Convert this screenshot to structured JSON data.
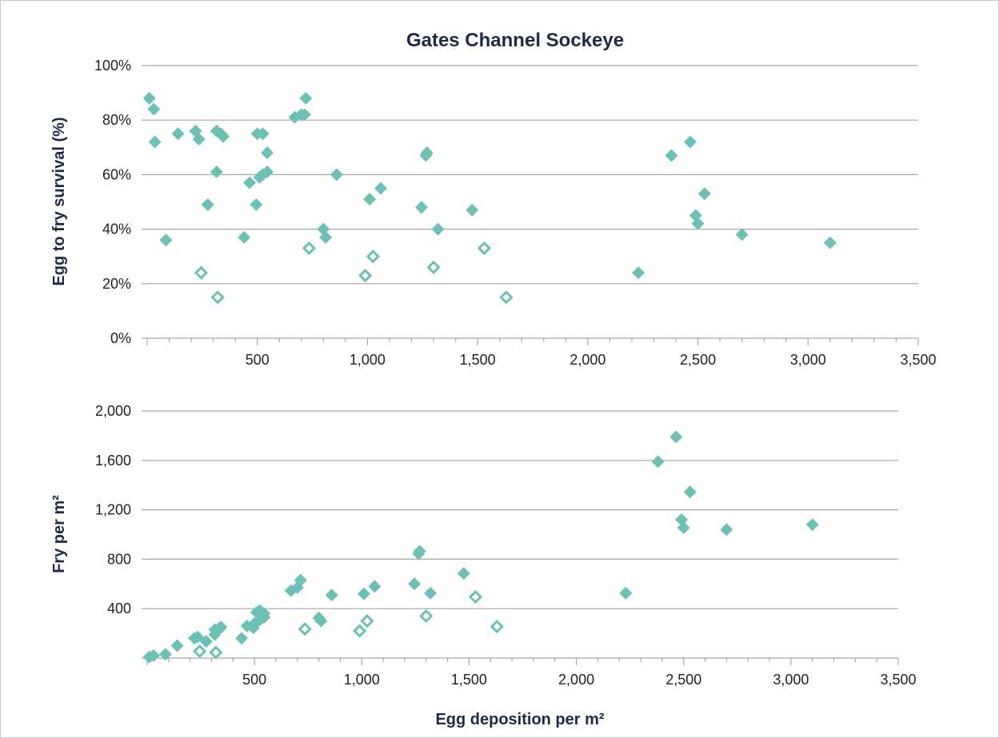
{
  "colors": {
    "marker": "#6cc0b4",
    "grid": "#a6a6a6",
    "text": "#1d2a4a"
  },
  "chart_data": [
    {
      "type": "scatter",
      "title": "Gates Channel Sockeye",
      "xlabel": "",
      "ylabel": "Egg to fry survival (%)",
      "xlim": [
        0,
        3500
      ],
      "ylim": [
        0,
        100
      ],
      "x_ticks": [
        "500",
        "1,000",
        "1,500",
        "2,000",
        "2,500",
        "3,000",
        "3,500"
      ],
      "y_ticks": [
        "0%",
        "20%",
        "40%",
        "60%",
        "80%",
        "100%"
      ],
      "grid": "horizontal",
      "legend": "none",
      "series": [
        {
          "marker": "filled-diamond",
          "points": [
            [
              10,
              88
            ],
            [
              30,
              84
            ],
            [
              35,
              72
            ],
            [
              85,
              36
            ],
            [
              140,
              75
            ],
            [
              220,
              76
            ],
            [
              235,
              73
            ],
            [
              275,
              49
            ],
            [
              315,
              76
            ],
            [
              315,
              61
            ],
            [
              335,
              75
            ],
            [
              345,
              74
            ],
            [
              440,
              37
            ],
            [
              465,
              57
            ],
            [
              495,
              49
            ],
            [
              500,
              75
            ],
            [
              510,
              59
            ],
            [
              525,
              75
            ],
            [
              525,
              60
            ],
            [
              545,
              61
            ],
            [
              545,
              68
            ],
            [
              670,
              81
            ],
            [
              700,
              82
            ],
            [
              715,
              82
            ],
            [
              720,
              88
            ],
            [
              800,
              40
            ],
            [
              810,
              37
            ],
            [
              860,
              60
            ],
            [
              1010,
              51
            ],
            [
              1060,
              55
            ],
            [
              1245,
              48
            ],
            [
              1265,
              67
            ],
            [
              1270,
              68
            ],
            [
              1320,
              40
            ],
            [
              1475,
              47
            ],
            [
              2230,
              24
            ],
            [
              2380,
              67
            ],
            [
              2465,
              72
            ],
            [
              2490,
              45
            ],
            [
              2500,
              42
            ],
            [
              2530,
              53
            ],
            [
              2700,
              38
            ],
            [
              3100,
              35
            ]
          ]
        },
        {
          "marker": "open-diamond",
          "points": [
            [
              245,
              24
            ],
            [
              320,
              15
            ],
            [
              735,
              33
            ],
            [
              990,
              23
            ],
            [
              1025,
              30
            ],
            [
              1300,
              26
            ],
            [
              1530,
              33
            ],
            [
              1630,
              15
            ]
          ]
        }
      ]
    },
    {
      "type": "scatter",
      "title": "",
      "xlabel": "Egg deposition per m²",
      "ylabel": "Fry per m²",
      "xlim": [
        0,
        3500
      ],
      "ylim": [
        0,
        2000
      ],
      "x_ticks": [
        "500",
        "1,000",
        "1,500",
        "2,000",
        "2,500",
        "3,000",
        "3,500"
      ],
      "y_ticks": [
        "400",
        "800",
        "1,200",
        "1,600",
        "2,000"
      ],
      "grid": "horizontal",
      "legend": "none",
      "series": [
        {
          "marker": "filled-diamond",
          "points": [
            [
              10,
              8
            ],
            [
              30,
              20
            ],
            [
              85,
              30
            ],
            [
              140,
              100
            ],
            [
              220,
              160
            ],
            [
              235,
              170
            ],
            [
              275,
              135
            ],
            [
              315,
              230
            ],
            [
              315,
              190
            ],
            [
              335,
              240
            ],
            [
              345,
              250
            ],
            [
              440,
              160
            ],
            [
              465,
              260
            ],
            [
              495,
              245
            ],
            [
              500,
              280
            ],
            [
              510,
              370
            ],
            [
              525,
              310
            ],
            [
              525,
              385
            ],
            [
              545,
              330
            ],
            [
              545,
              360
            ],
            [
              670,
              545
            ],
            [
              700,
              570
            ],
            [
              715,
              630
            ],
            [
              800,
              325
            ],
            [
              810,
              300
            ],
            [
              860,
              510
            ],
            [
              1010,
              520
            ],
            [
              1060,
              580
            ],
            [
              1245,
              600
            ],
            [
              1265,
              845
            ],
            [
              1270,
              865
            ],
            [
              1320,
              525
            ],
            [
              1475,
              685
            ],
            [
              2230,
              525
            ],
            [
              2380,
              1590
            ],
            [
              2465,
              1790
            ],
            [
              2490,
              1120
            ],
            [
              2500,
              1055
            ],
            [
              2530,
              1345
            ],
            [
              2700,
              1040
            ],
            [
              3100,
              1080
            ]
          ]
        },
        {
          "marker": "open-diamond",
          "points": [
            [
              245,
              55
            ],
            [
              320,
              45
            ],
            [
              735,
              235
            ],
            [
              990,
              220
            ],
            [
              1025,
              300
            ],
            [
              1300,
              340
            ],
            [
              1530,
              495
            ],
            [
              1630,
              255
            ]
          ]
        }
      ]
    }
  ]
}
